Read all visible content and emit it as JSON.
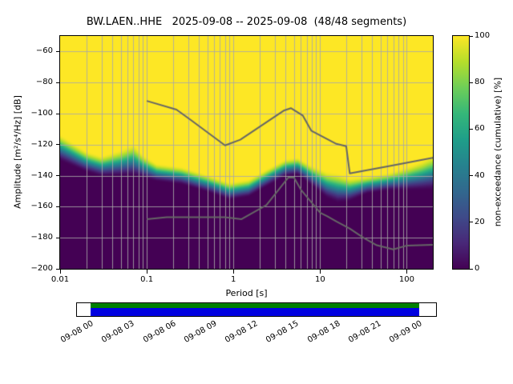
{
  "title": "BW.LAEN..HHE   2025-09-08 -- 2025-09-08  (48/48 segments)",
  "axes": {
    "xlabel": "Period [s]",
    "ylabel": "Amplitude [m²/s⁴/Hz] [dB]",
    "x_ticks": [
      {
        "v": 0.01,
        "label": "0.01"
      },
      {
        "v": 0.1,
        "label": "0.1"
      },
      {
        "v": 1,
        "label": "1"
      },
      {
        "v": 10,
        "label": "10"
      },
      {
        "v": 100,
        "label": "100"
      }
    ],
    "y_ticks": [
      {
        "v": -60,
        "label": "−60"
      },
      {
        "v": -80,
        "label": "−80"
      },
      {
        "v": -100,
        "label": "−100"
      },
      {
        "v": -120,
        "label": "−120"
      },
      {
        "v": -140,
        "label": "−140"
      },
      {
        "v": -160,
        "label": "−160"
      },
      {
        "v": -180,
        "label": "−180"
      },
      {
        "v": -200,
        "label": "−200"
      }
    ],
    "grid_color": "#a8a8a8"
  },
  "colorbar": {
    "label": "non-exceedance (cumulative) [%]",
    "min": 0,
    "max": 100,
    "ticks": [
      {
        "v": 0,
        "label": "0"
      },
      {
        "v": 20,
        "label": "20"
      },
      {
        "v": 40,
        "label": "40"
      },
      {
        "v": 60,
        "label": "60"
      },
      {
        "v": 80,
        "label": "80"
      },
      {
        "v": 100,
        "label": "100"
      }
    ]
  },
  "chart_data": {
    "type": "heatmap",
    "title": "BW.LAEN..HHE   2025-09-08 -- 2025-09-08  (48/48 segments)",
    "xlabel": "Period [s]",
    "ylabel": "Amplitude [m²/s⁴/Hz] [dB]",
    "zlabel": "non-exceedance (cumulative) [%]",
    "xlim": [
      0.01,
      200
    ],
    "log_x": true,
    "ylim": [
      -200,
      -50
    ],
    "zlim": [
      0,
      100
    ],
    "grid": true,
    "colormap": {
      "name": "viridis",
      "anchors": [
        "#440154",
        "#482878",
        "#3e4a89",
        "#31688e",
        "#26828e",
        "#1f9e89",
        "#35b779",
        "#6ece58",
        "#b5de2b",
        "#fde725"
      ]
    },
    "distribution": {
      "periods": [
        0.01,
        0.02,
        0.03,
        0.05,
        0.07,
        0.09,
        0.13,
        0.25,
        0.5,
        0.9,
        1.5,
        2.5,
        4,
        5.5,
        8,
        12,
        16,
        22,
        35,
        60,
        100,
        150,
        200
      ],
      "median_db": [
        -122,
        -131,
        -134,
        -132,
        -130,
        -134,
        -138,
        -140,
        -145,
        -150,
        -148,
        -141,
        -135,
        -134,
        -140,
        -146,
        -148,
        -149,
        -146,
        -144,
        -142,
        -140,
        -138
      ],
      "halfwidth_db": [
        9,
        7,
        7,
        9,
        11,
        8,
        6,
        6,
        6,
        6,
        6,
        6,
        6,
        6,
        7,
        9,
        10,
        8,
        6,
        6,
        8,
        10,
        12
      ]
    },
    "noise_models": {
      "color": "#666666",
      "high": [
        [
          0.1,
          -91.8
        ],
        [
          0.22,
          -97.4
        ],
        [
          0.32,
          -104
        ],
        [
          0.8,
          -120.5
        ],
        [
          1.2,
          -116.8
        ],
        [
          3.8,
          -98.1
        ],
        [
          4.6,
          -96.5
        ],
        [
          6.3,
          -101.2
        ],
        [
          7.9,
          -111
        ],
        [
          15.4,
          -119.5
        ],
        [
          20,
          -121
        ],
        [
          22,
          -138.5
        ],
        [
          60,
          -134
        ],
        [
          200,
          -128.5
        ]
      ],
      "low": [
        [
          0.1,
          -168.1
        ],
        [
          0.17,
          -166.7
        ],
        [
          0.4,
          -166.7
        ],
        [
          0.8,
          -166.7
        ],
        [
          1.24,
          -168
        ],
        [
          2.4,
          -159
        ],
        [
          4.3,
          -141.2
        ],
        [
          5,
          -141.3
        ],
        [
          6,
          -149
        ],
        [
          10,
          -163.8
        ],
        [
          12,
          -166
        ],
        [
          15.6,
          -169.7
        ],
        [
          21.9,
          -174
        ],
        [
          31.6,
          -180
        ],
        [
          45,
          -184.8
        ],
        [
          70,
          -187.5
        ],
        [
          101,
          -185
        ],
        [
          200,
          -184.6
        ]
      ]
    }
  },
  "timeline": {
    "labels": [
      "09-08 00",
      "09-08 03",
      "09-08 06",
      "09-08 09",
      "09-08 12",
      "09-08 15",
      "09-08 18",
      "09-08 21",
      "09-09 00"
    ],
    "top_color": "#008000",
    "bottom_color": "#0000e0"
  }
}
